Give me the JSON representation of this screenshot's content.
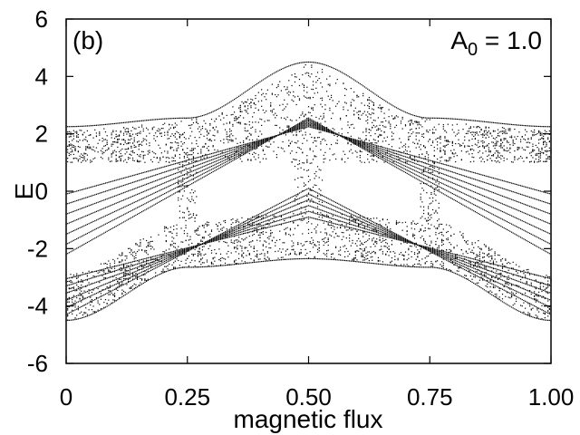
{
  "chart_data": {
    "type": "scatter",
    "xlabel": "magnetic flux",
    "ylabel": "E",
    "xlim": [
      0,
      1
    ],
    "ylim": [
      -6,
      6
    ],
    "xticks": [
      {
        "value": 0,
        "label": "0"
      },
      {
        "value": 0.25,
        "label": "0.25"
      },
      {
        "value": 0.5,
        "label": "0.50"
      },
      {
        "value": 0.75,
        "label": "0.75"
      },
      {
        "value": 1.0,
        "label": "1.00"
      }
    ],
    "yticks": [
      {
        "value": 6,
        "label": "6"
      },
      {
        "value": 4,
        "label": "4"
      },
      {
        "value": 2,
        "label": "2"
      },
      {
        "value": 0,
        "label": "0"
      },
      {
        "value": -2,
        "label": "-2"
      },
      {
        "value": -4,
        "label": "-4"
      },
      {
        "value": -6,
        "label": "-6"
      }
    ],
    "panel_label": "(b)",
    "annotation": {
      "symbol": "A",
      "subscript": "0",
      "rest": " = 1.0"
    },
    "grid": false,
    "legend": "none",
    "marker_color": "#000000",
    "spectrum_envelope": {
      "flux": [
        0,
        0.25,
        0.5,
        0.75,
        1.0
      ],
      "E_max": [
        2.25,
        2.55,
        4.5,
        2.55,
        2.25
      ],
      "E_min": [
        -4.5,
        -2.65,
        -2.35,
        -2.65,
        -4.5
      ]
    }
  }
}
